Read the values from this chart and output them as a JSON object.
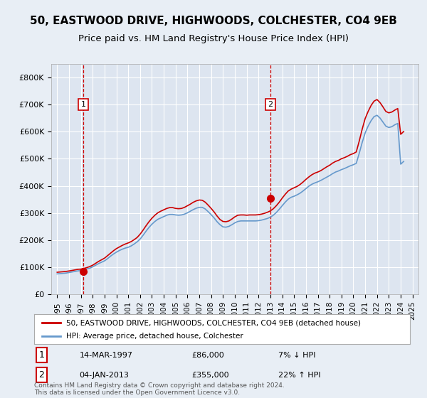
{
  "title": "50, EASTWOOD DRIVE, HIGHWOODS, COLCHESTER, CO4 9EB",
  "subtitle": "Price paid vs. HM Land Registry's House Price Index (HPI)",
  "title_fontsize": 11,
  "subtitle_fontsize": 9.5,
  "ylabel_ticks": [
    "£0",
    "£100K",
    "£200K",
    "£300K",
    "£400K",
    "£500K",
    "£600K",
    "£700K",
    "£800K"
  ],
  "ytick_values": [
    0,
    100000,
    200000,
    300000,
    400000,
    500000,
    600000,
    700000,
    800000
  ],
  "ylim": [
    0,
    850000
  ],
  "xlim_start": 1994.5,
  "xlim_end": 2025.5,
  "xtick_years": [
    1995,
    1996,
    1997,
    1998,
    1999,
    2000,
    2001,
    2002,
    2003,
    2004,
    2005,
    2006,
    2007,
    2008,
    2009,
    2010,
    2011,
    2012,
    2013,
    2014,
    2015,
    2016,
    2017,
    2018,
    2019,
    2020,
    2021,
    2022,
    2023,
    2024,
    2025
  ],
  "background_color": "#e8eef5",
  "plot_bg_color": "#dde5f0",
  "grid_color": "#ffffff",
  "purchase1_x": 1997.2,
  "purchase1_y": 86000,
  "purchase1_label": "1",
  "purchase2_x": 2013.0,
  "purchase2_y": 355000,
  "purchase2_label": "2",
  "purchase_color": "#cc0000",
  "hpi_color": "#6699cc",
  "vline_color": "#cc0000",
  "legend_label_red": "50, EASTWOOD DRIVE, HIGHWOODS, COLCHESTER, CO4 9EB (detached house)",
  "legend_label_blue": "HPI: Average price, detached house, Colchester",
  "annotation1_date": "14-MAR-1997",
  "annotation1_price": "£86,000",
  "annotation1_hpi": "7% ↓ HPI",
  "annotation2_date": "04-JAN-2013",
  "annotation2_price": "£355,000",
  "annotation2_hpi": "22% ↑ HPI",
  "footer": "Contains HM Land Registry data © Crown copyright and database right 2024.\nThis data is licensed under the Open Government Licence v3.0.",
  "hpi_data_x": [
    1995.0,
    1995.25,
    1995.5,
    1995.75,
    1996.0,
    1996.25,
    1996.5,
    1996.75,
    1997.0,
    1997.25,
    1997.5,
    1997.75,
    1998.0,
    1998.25,
    1998.5,
    1998.75,
    1999.0,
    1999.25,
    1999.5,
    1999.75,
    2000.0,
    2000.25,
    2000.5,
    2000.75,
    2001.0,
    2001.25,
    2001.5,
    2001.75,
    2002.0,
    2002.25,
    2002.5,
    2002.75,
    2003.0,
    2003.25,
    2003.5,
    2003.75,
    2004.0,
    2004.25,
    2004.5,
    2004.75,
    2005.0,
    2005.25,
    2005.5,
    2005.75,
    2006.0,
    2006.25,
    2006.5,
    2006.75,
    2007.0,
    2007.25,
    2007.5,
    2007.75,
    2008.0,
    2008.25,
    2008.5,
    2008.75,
    2009.0,
    2009.25,
    2009.5,
    2009.75,
    2010.0,
    2010.25,
    2010.5,
    2010.75,
    2011.0,
    2011.25,
    2011.5,
    2011.75,
    2012.0,
    2012.25,
    2012.5,
    2012.75,
    2013.0,
    2013.25,
    2013.5,
    2013.75,
    2014.0,
    2014.25,
    2014.5,
    2014.75,
    2015.0,
    2015.25,
    2015.5,
    2015.75,
    2016.0,
    2016.25,
    2016.5,
    2016.75,
    2017.0,
    2017.25,
    2017.5,
    2017.75,
    2018.0,
    2018.25,
    2018.5,
    2018.75,
    2019.0,
    2019.25,
    2019.5,
    2019.75,
    2020.0,
    2020.25,
    2020.5,
    2020.75,
    2021.0,
    2021.25,
    2021.5,
    2021.75,
    2022.0,
    2022.25,
    2022.5,
    2022.75,
    2023.0,
    2023.25,
    2023.5,
    2023.75,
    2024.0,
    2024.25
  ],
  "hpi_data_y": [
    76000,
    77000,
    78000,
    79000,
    81000,
    83000,
    85000,
    87000,
    88000,
    91000,
    94000,
    97000,
    102000,
    108000,
    114000,
    119000,
    124000,
    132000,
    141000,
    149000,
    156000,
    162000,
    167000,
    171000,
    174000,
    179000,
    186000,
    194000,
    204000,
    218000,
    233000,
    247000,
    259000,
    269000,
    277000,
    282000,
    287000,
    292000,
    295000,
    295000,
    293000,
    292000,
    293000,
    296000,
    301000,
    307000,
    313000,
    318000,
    321000,
    321000,
    315000,
    305000,
    294000,
    282000,
    268000,
    257000,
    249000,
    248000,
    251000,
    257000,
    264000,
    269000,
    271000,
    271000,
    271000,
    271000,
    271000,
    271000,
    272000,
    274000,
    277000,
    280000,
    285000,
    292000,
    302000,
    314000,
    327000,
    340000,
    351000,
    358000,
    362000,
    367000,
    373000,
    381000,
    390000,
    399000,
    406000,
    411000,
    415000,
    420000,
    426000,
    432000,
    438000,
    445000,
    451000,
    455000,
    460000,
    464000,
    469000,
    474000,
    478000,
    483000,
    520000,
    560000,
    595000,
    620000,
    640000,
    655000,
    660000,
    650000,
    635000,
    620000,
    615000,
    618000,
    625000,
    630000,
    480000,
    490000
  ],
  "red_data_x": [
    1995.0,
    1995.25,
    1995.5,
    1995.75,
    1996.0,
    1996.25,
    1996.5,
    1996.75,
    1997.0,
    1997.25,
    1997.5,
    1997.75,
    1998.0,
    1998.25,
    1998.5,
    1998.75,
    1999.0,
    1999.25,
    1999.5,
    1999.75,
    2000.0,
    2000.25,
    2000.5,
    2000.75,
    2001.0,
    2001.25,
    2001.5,
    2001.75,
    2002.0,
    2002.25,
    2002.5,
    2002.75,
    2003.0,
    2003.25,
    2003.5,
    2003.75,
    2004.0,
    2004.25,
    2004.5,
    2004.75,
    2005.0,
    2005.25,
    2005.5,
    2005.75,
    2006.0,
    2006.25,
    2006.5,
    2006.75,
    2007.0,
    2007.25,
    2007.5,
    2007.75,
    2008.0,
    2008.25,
    2008.5,
    2008.75,
    2009.0,
    2009.25,
    2009.5,
    2009.75,
    2010.0,
    2010.25,
    2010.5,
    2010.75,
    2011.0,
    2011.25,
    2011.5,
    2011.75,
    2012.0,
    2012.25,
    2012.5,
    2012.75,
    2013.0,
    2013.25,
    2013.5,
    2013.75,
    2014.0,
    2014.25,
    2014.5,
    2014.75,
    2015.0,
    2015.25,
    2015.5,
    2015.75,
    2016.0,
    2016.25,
    2016.5,
    2016.75,
    2017.0,
    2017.25,
    2017.5,
    2017.75,
    2018.0,
    2018.25,
    2018.5,
    2018.75,
    2019.0,
    2019.25,
    2019.5,
    2019.75,
    2020.0,
    2020.25,
    2020.5,
    2020.75,
    2021.0,
    2021.25,
    2021.5,
    2021.75,
    2022.0,
    2022.25,
    2022.5,
    2022.75,
    2023.0,
    2023.25,
    2023.5,
    2023.75,
    2024.0,
    2024.25
  ],
  "red_data_y": [
    82000,
    83000,
    84000,
    85000,
    86800,
    88600,
    90600,
    92700,
    93500,
    96000,
    99000,
    103000,
    108000,
    115000,
    122000,
    128000,
    134000,
    143000,
    152000,
    161000,
    169000,
    175000,
    181000,
    186000,
    190000,
    195000,
    202000,
    210000,
    222000,
    237000,
    253000,
    268000,
    281000,
    292000,
    301000,
    307000,
    312000,
    317000,
    320000,
    320000,
    317000,
    316000,
    317000,
    321000,
    327000,
    333000,
    340000,
    345000,
    348000,
    347000,
    340000,
    329000,
    317000,
    304000,
    289000,
    276000,
    269000,
    268000,
    271000,
    278000,
    286000,
    292000,
    293000,
    293000,
    292000,
    293000,
    293000,
    293000,
    294000,
    296000,
    299000,
    303000,
    308000,
    316000,
    327000,
    340000,
    355000,
    369000,
    381000,
    388000,
    393000,
    398000,
    405000,
    414000,
    424000,
    433000,
    441000,
    447000,
    451000,
    456000,
    463000,
    470000,
    476000,
    484000,
    490000,
    494000,
    500000,
    504000,
    509000,
    515000,
    519000,
    525000,
    565000,
    609000,
    648000,
    674000,
    696000,
    712000,
    718000,
    707000,
    691000,
    674000,
    669000,
    672000,
    679000,
    685000,
    590000,
    600000
  ],
  "background_fig_color": "#f0f0f0"
}
